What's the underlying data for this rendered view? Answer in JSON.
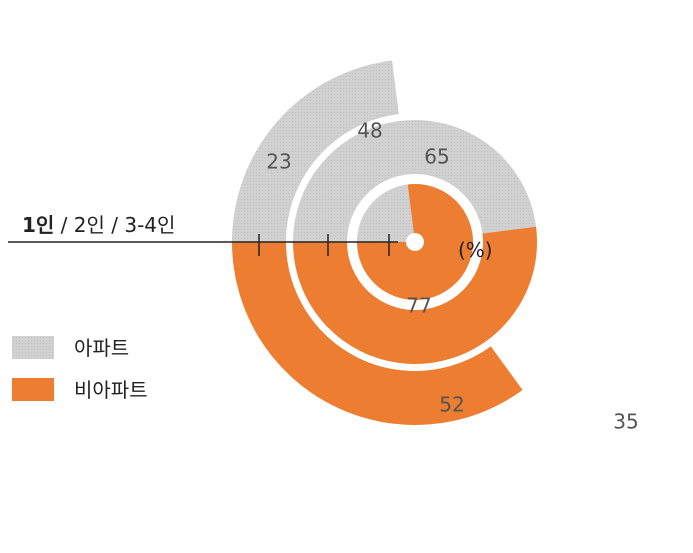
{
  "chart_data": {
    "type": "radial-bar",
    "categories": [
      "1인",
      "2인",
      "3-4인"
    ],
    "category_label": {
      "bold": "1인",
      "rest": " / 2인 / 3-4인"
    },
    "unit": "(%)",
    "series": [
      {
        "name": "아파트",
        "values": [
          23,
          48,
          65
        ],
        "color": "#d1d1d1",
        "direction": "up"
      },
      {
        "name": "비아파트",
        "values": [
          35,
          52,
          77
        ],
        "color": "#ed7d31",
        "direction": "down"
      }
    ],
    "scale_max": 100
  },
  "legend": [
    {
      "label": "아파트",
      "color": "#d1d1d1"
    },
    {
      "label": "비아파트",
      "color": "#ed7d31"
    }
  ]
}
